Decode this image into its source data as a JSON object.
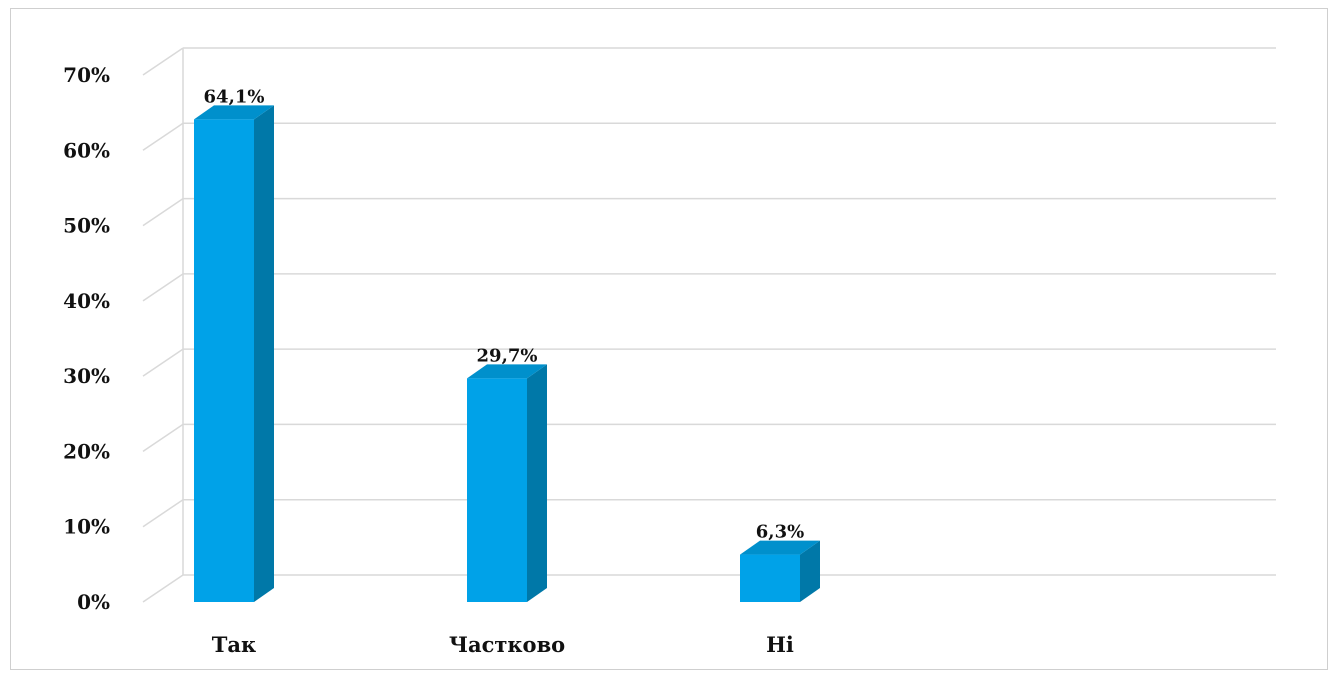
{
  "chart_data": {
    "type": "bar",
    "style": "3d-column",
    "categories": [
      "Так",
      "Частково",
      "Ні"
    ],
    "series": [
      {
        "values": [
          64.1,
          29.7,
          6.3
        ]
      }
    ],
    "data_labels": [
      "64,1%",
      "29,7%",
      "6,3%"
    ],
    "y_ticks": [
      "0%",
      "10%",
      "20%",
      "30%",
      "40%",
      "50%",
      "60%",
      "70%"
    ],
    "ylim": [
      0,
      70
    ],
    "grid": true,
    "legend": false,
    "colors": {
      "bar_front": "#00a2e8",
      "bar_side": "#0078a8",
      "bar_top": "#0090cc",
      "grid": "#d9d9d9"
    }
  }
}
